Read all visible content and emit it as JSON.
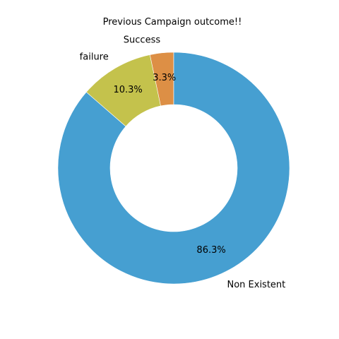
{
  "chart_data": {
    "type": "pie",
    "donut": true,
    "title": "Previous Campaign outcome!!",
    "categories": [
      "Success",
      "failure",
      "Non Existent"
    ],
    "values": [
      3.3,
      10.3,
      86.3
    ],
    "value_labels": [
      "3.3%",
      "10.3%",
      "86.3%"
    ],
    "colors": [
      "#dd8f45",
      "#c4c24c",
      "#469fd1"
    ],
    "start_angle": "top",
    "direction": "counterclockwise",
    "legend": false
  }
}
